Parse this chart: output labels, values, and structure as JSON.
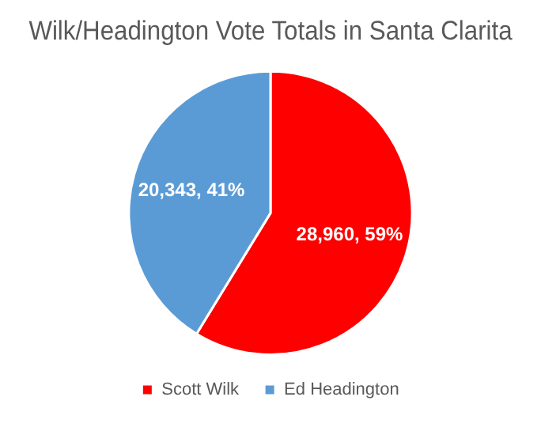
{
  "chart_data": {
    "type": "pie",
    "title": "Wilk/Headington Vote Totals in Santa Clarita",
    "categories": [
      "Scott Wilk",
      "Ed Headington"
    ],
    "values": [
      28960,
      20343
    ],
    "colors": [
      "#ff0000",
      "#5b9bd5"
    ],
    "value_labels": [
      "28,960, 59%",
      "20,343, 41%"
    ],
    "legend": "bottom"
  }
}
